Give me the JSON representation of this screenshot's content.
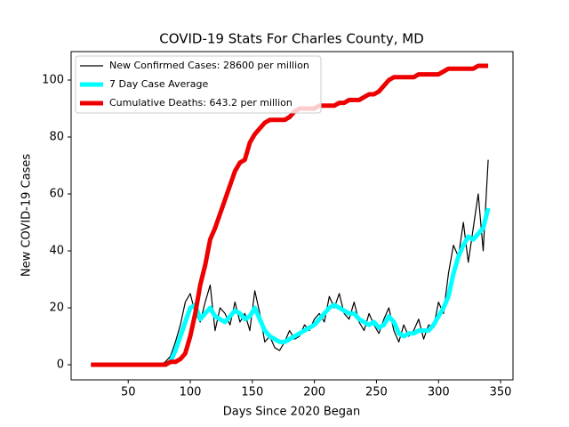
{
  "chart_data": {
    "type": "line",
    "title": "COVID-19 Stats For Charles County, MD",
    "xlabel": "Days Since 2020 Began",
    "ylabel": "New COVID-19 Cases",
    "x": [
      20,
      24,
      28,
      32,
      36,
      40,
      44,
      48,
      52,
      56,
      60,
      64,
      68,
      72,
      76,
      80,
      84,
      88,
      92,
      96,
      100,
      104,
      108,
      112,
      116,
      120,
      124,
      128,
      132,
      136,
      140,
      144,
      148,
      152,
      156,
      160,
      164,
      168,
      172,
      176,
      180,
      184,
      188,
      192,
      196,
      200,
      204,
      208,
      212,
      216,
      220,
      224,
      228,
      232,
      236,
      240,
      244,
      248,
      252,
      256,
      260,
      264,
      268,
      272,
      276,
      280,
      284,
      288,
      292,
      296,
      300,
      304,
      308,
      312,
      316,
      320,
      324,
      328,
      332,
      336,
      340
    ],
    "series": [
      {
        "name": "New Confirmed Cases: 28600 per million",
        "color": "#000000",
        "values": [
          0,
          0,
          0,
          0,
          0,
          0,
          0,
          0,
          0,
          0,
          0,
          0,
          0,
          0,
          0,
          1,
          3,
          8,
          14,
          22,
          25,
          18,
          15,
          22,
          28,
          12,
          20,
          18,
          14,
          22,
          15,
          18,
          12,
          26,
          18,
          8,
          10,
          6,
          5,
          8,
          12,
          9,
          10,
          14,
          12,
          16,
          18,
          15,
          24,
          20,
          25,
          18,
          16,
          22,
          15,
          12,
          18,
          14,
          11,
          16,
          20,
          12,
          8,
          14,
          10,
          12,
          16,
          9,
          14,
          13,
          22,
          18,
          32,
          42,
          38,
          50,
          36,
          48,
          60,
          40,
          72
        ]
      },
      {
        "name": "7 Day Case Average",
        "color": "#00ffff",
        "values": [
          0,
          0,
          0,
          0,
          0,
          0,
          0,
          0,
          0,
          0,
          0,
          0,
          0,
          0,
          0,
          0,
          1,
          5,
          10,
          15,
          20,
          21,
          16,
          18,
          20,
          17,
          16,
          15,
          17,
          19,
          18,
          16,
          17,
          20,
          16,
          12,
          10,
          9,
          8,
          8,
          9,
          10,
          11,
          12,
          13,
          14,
          16,
          18,
          20,
          21,
          20,
          19,
          18,
          18,
          16,
          15,
          14,
          15,
          13,
          14,
          17,
          15,
          11,
          10,
          11,
          11,
          12,
          12,
          12,
          14,
          17,
          20,
          24,
          32,
          38,
          42,
          45,
          44,
          46,
          48,
          55
        ]
      },
      {
        "name": "Cumulative Deaths: 643.2 per million",
        "color": "#ee0000",
        "values": [
          0,
          0,
          0,
          0,
          0,
          0,
          0,
          0,
          0,
          0,
          0,
          0,
          0,
          0,
          0,
          0,
          1,
          1,
          2,
          4,
          10,
          18,
          28,
          35,
          44,
          48,
          53,
          58,
          63,
          68,
          71,
          72,
          78,
          81,
          83,
          85,
          86,
          86,
          86,
          86,
          87,
          89,
          90,
          90,
          90,
          90,
          91,
          91,
          91,
          91,
          92,
          92,
          93,
          93,
          93,
          94,
          95,
          95,
          96,
          98,
          100,
          101,
          101,
          101,
          101,
          101,
          102,
          102,
          102,
          102,
          102,
          103,
          104,
          104,
          104,
          104,
          104,
          104,
          105,
          105,
          105
        ]
      }
    ],
    "xlim": [
      4,
      360
    ],
    "ylim": [
      -5.3,
      110
    ],
    "xticks": [
      50,
      100,
      150,
      200,
      250,
      300,
      350
    ],
    "yticks": [
      0,
      20,
      40,
      60,
      80,
      100
    ],
    "legend": "upper left",
    "grid": false
  }
}
